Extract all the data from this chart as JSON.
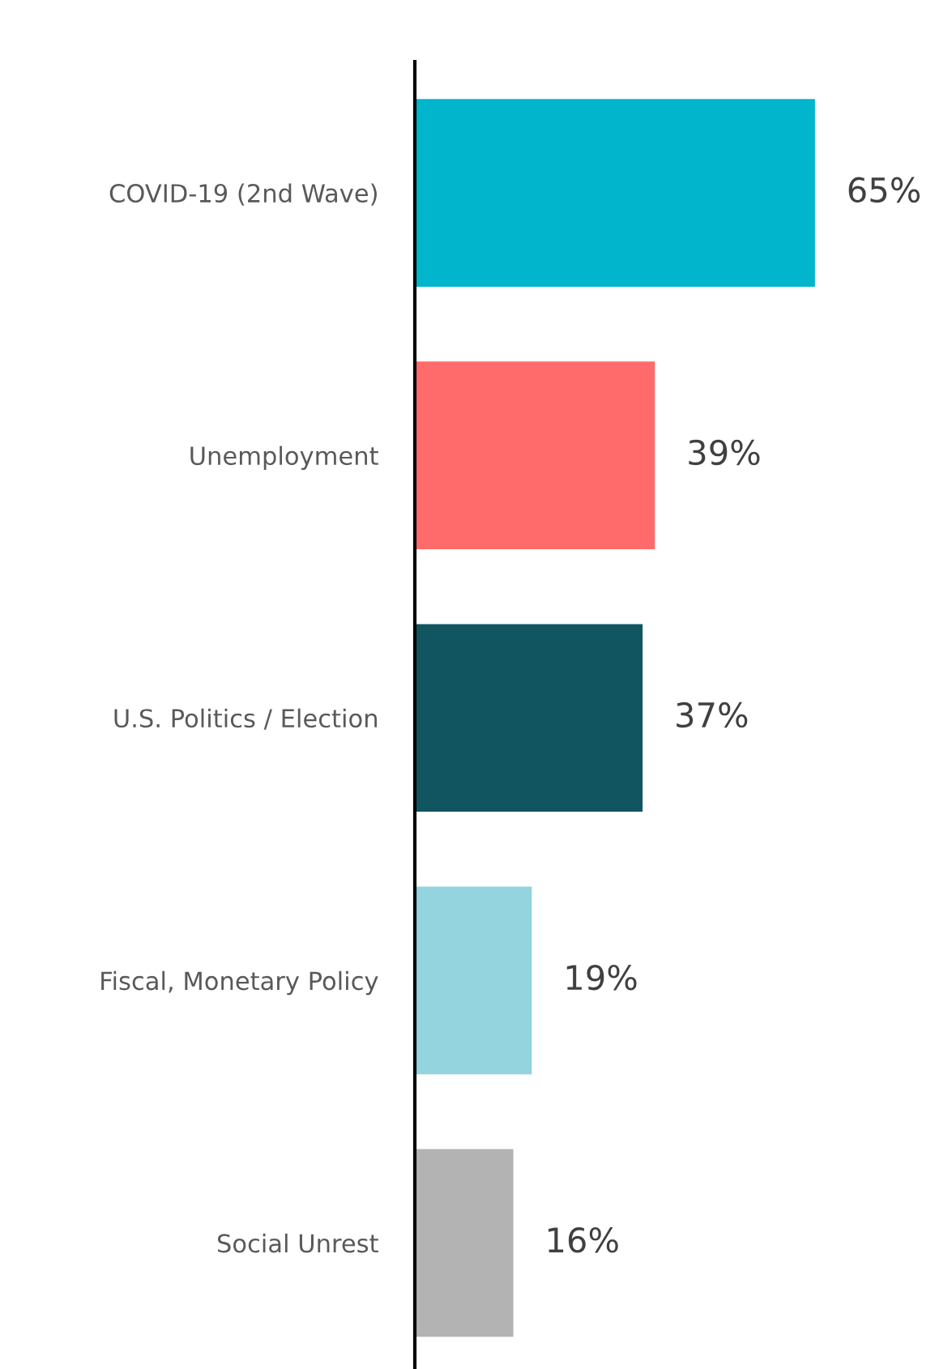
{
  "chart_data": {
    "type": "bar",
    "orientation": "horizontal",
    "categories": [
      "COVID-19 (2nd Wave)",
      "Unemployment",
      "U.S. Politics / Election",
      "Fiscal, Monetary Policy",
      "Social Unrest"
    ],
    "values": [
      65,
      39,
      37,
      19,
      16
    ],
    "colors": [
      "#00b5cc",
      "#ff6b6b",
      "#115560",
      "#93d4df",
      "#b3b3b3"
    ],
    "value_labels": [
      "65%",
      "39%",
      "37%",
      "19%",
      "16%"
    ],
    "tick_labels": "y",
    "grid": false,
    "legend": false
  }
}
